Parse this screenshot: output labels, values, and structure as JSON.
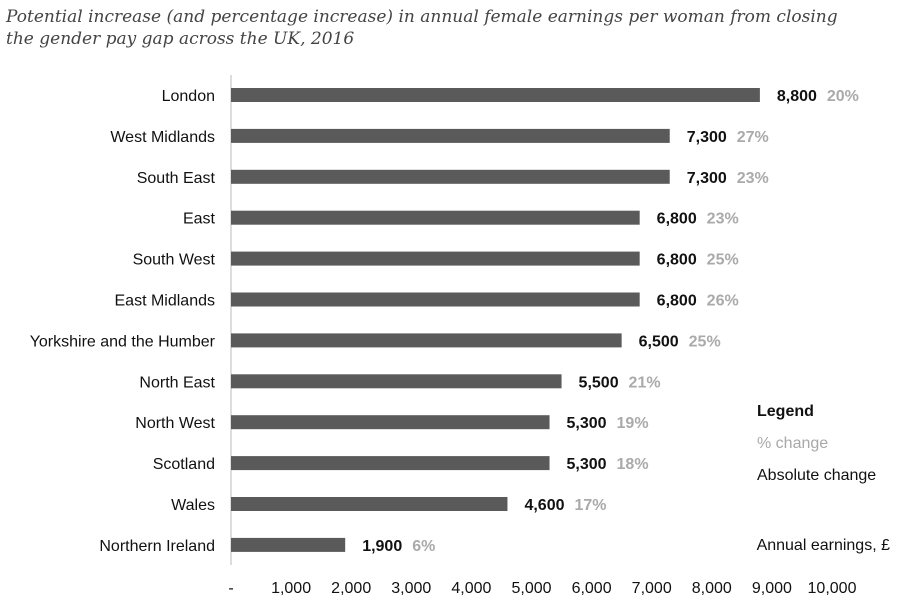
{
  "chart_data": {
    "type": "bar",
    "orientation": "horizontal",
    "title_lines": [
      "Potential increase (and percentage increase) in annual female earnings per woman from closing",
      "the gender pay gap across the UK, 2016"
    ],
    "categories": [
      "London",
      "West Midlands",
      "South East",
      "East",
      "South West",
      "East Midlands",
      "Yorkshire and the Humber",
      "North East",
      "North West",
      "Scotland",
      "Wales",
      "Northern Ireland"
    ],
    "values": [
      8800,
      7300,
      7300,
      6800,
      6800,
      6800,
      6500,
      5500,
      5300,
      5300,
      4600,
      1900
    ],
    "value_labels": [
      "8,800",
      "7,300",
      "7,300",
      "6,800",
      "6,800",
      "6,800",
      "6,500",
      "5,500",
      "5,300",
      "5,300",
      "4,600",
      "1,900"
    ],
    "percent_change": [
      "20%",
      "27%",
      "23%",
      "23%",
      "25%",
      "26%",
      "25%",
      "21%",
      "19%",
      "18%",
      "17%",
      "6%"
    ],
    "xlim": [
      0,
      10000
    ],
    "xticks": [
      0,
      1000,
      2000,
      3000,
      4000,
      5000,
      6000,
      7000,
      8000,
      9000,
      10000
    ],
    "xtick_labels": [
      "-",
      "1,000",
      "2,000",
      "3,000",
      "4,000",
      "5,000",
      "6,000",
      "7,000",
      "8,000",
      "9,000",
      "10,000"
    ],
    "xlabel": "Annual earnings, £",
    "legend": {
      "title": "Legend",
      "items": [
        "% change",
        "Absolute change"
      ],
      "placement": "bottom-right"
    },
    "colors": {
      "bar": "#5a5a5a",
      "absolute_label": "#111111",
      "percent_label": "#aaaaaa"
    },
    "grid": false
  }
}
